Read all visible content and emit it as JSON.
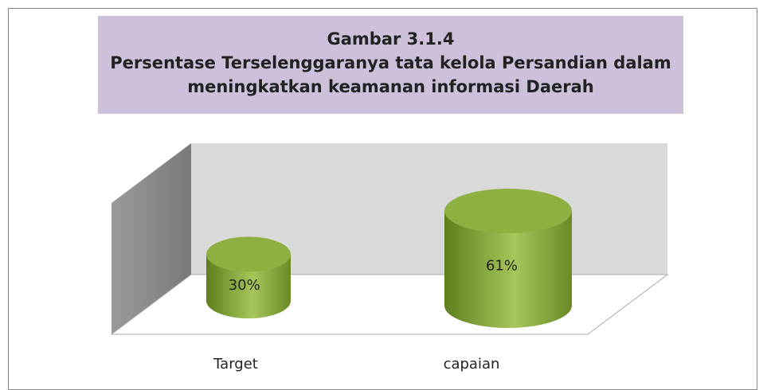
{
  "chart_data": {
    "type": "bar",
    "title": "Gambar 3.1.4",
    "subtitle": "Persentase Terselenggaranya tata kelola Persandian dalam meningkatkan keamanan informasi Daerah",
    "categories": [
      "Target",
      "capaian"
    ],
    "values": [
      30,
      61
    ],
    "value_labels": [
      "30%",
      "61%"
    ],
    "color": "#8fb040"
  }
}
